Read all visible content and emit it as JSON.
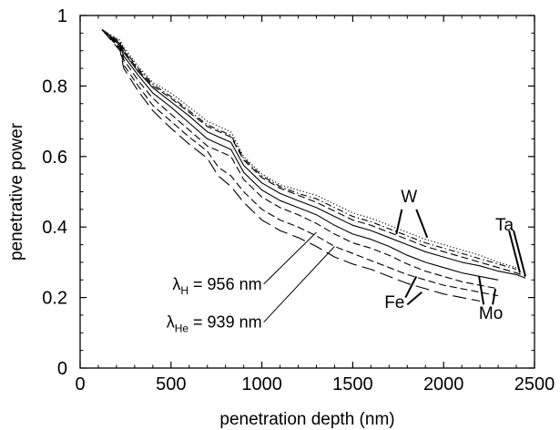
{
  "chart_data": {
    "type": "line",
    "title": "",
    "xlabel": "penetration depth (nm)",
    "ylabel": "penetrative power",
    "xlim": [
      0,
      2500
    ],
    "ylim": [
      0,
      1
    ],
    "xticks": [
      0,
      500,
      1000,
      1500,
      2000,
      2500
    ],
    "xtick_labels": [
      "0",
      "500",
      "1000",
      "1500",
      "2000",
      "2500"
    ],
    "yticks": [
      0,
      0.2,
      0.4,
      0.6,
      0.8,
      1
    ],
    "ytick_labels": [
      "0",
      "0.2",
      "0.4",
      "0.6",
      "0.8",
      "1"
    ],
    "grid": false,
    "legend": "none",
    "series": [
      {
        "element": "W",
        "wavelength": "H",
        "style": "dotted",
        "x": [
          120,
          220,
          240,
          320,
          400,
          500,
          600,
          700,
          830,
          900,
          1000,
          1100,
          1200,
          1300,
          1400,
          1500,
          1600,
          1700,
          1800,
          1900,
          2000,
          2100,
          2200,
          2300,
          2400
        ],
        "y": [
          0.96,
          0.93,
          0.91,
          0.855,
          0.81,
          0.78,
          0.74,
          0.7,
          0.67,
          0.6,
          0.55,
          0.52,
          0.505,
          0.49,
          0.465,
          0.44,
          0.425,
          0.405,
          0.385,
          0.365,
          0.35,
          0.335,
          0.32,
          0.3,
          0.285
        ]
      },
      {
        "element": "W",
        "wavelength": "He",
        "style": "dashdot",
        "x": [
          120,
          220,
          240,
          320,
          400,
          500,
          600,
          700,
          830,
          900,
          1000,
          1100,
          1200,
          1300,
          1400,
          1500,
          1600,
          1700,
          1800,
          1900,
          2000,
          2100,
          2200,
          2300,
          2400
        ],
        "y": [
          0.96,
          0.925,
          0.905,
          0.85,
          0.805,
          0.77,
          0.73,
          0.69,
          0.66,
          0.595,
          0.545,
          0.515,
          0.495,
          0.48,
          0.455,
          0.43,
          0.415,
          0.395,
          0.375,
          0.355,
          0.34,
          0.325,
          0.31,
          0.295,
          0.28
        ]
      },
      {
        "element": "Ta",
        "wavelength": "H",
        "style": "dashed",
        "x": [
          120,
          220,
          240,
          320,
          400,
          500,
          600,
          700,
          830,
          900,
          1000,
          1100,
          1200,
          1300,
          1400,
          1500,
          1600,
          1700,
          1800,
          1900,
          2000,
          2100,
          2200,
          2300,
          2400,
          2450
        ],
        "y": [
          0.96,
          0.92,
          0.9,
          0.845,
          0.8,
          0.765,
          0.725,
          0.685,
          0.655,
          0.59,
          0.54,
          0.51,
          0.49,
          0.47,
          0.445,
          0.42,
          0.405,
          0.385,
          0.365,
          0.345,
          0.33,
          0.315,
          0.3,
          0.285,
          0.27,
          0.26
        ]
      },
      {
        "element": "Ta",
        "wavelength": "He",
        "style": "solid",
        "x": [
          120,
          220,
          240,
          320,
          400,
          500,
          600,
          700,
          830,
          900,
          1000,
          1100,
          1200,
          1300,
          1400,
          1500,
          1600,
          1700,
          1800,
          1900,
          2000,
          2100,
          2200,
          2300,
          2400,
          2450
        ],
        "y": [
          0.96,
          0.92,
          0.895,
          0.84,
          0.795,
          0.755,
          0.715,
          0.67,
          0.64,
          0.575,
          0.525,
          0.495,
          0.475,
          0.455,
          0.43,
          0.405,
          0.39,
          0.37,
          0.35,
          0.33,
          0.315,
          0.3,
          0.29,
          0.275,
          0.265,
          0.255
        ]
      },
      {
        "element": "Mo",
        "wavelength": "H",
        "style": "solid",
        "x": [
          120,
          220,
          240,
          320,
          400,
          500,
          600,
          700,
          830,
          900,
          1000,
          1100,
          1200,
          1300,
          1400,
          1500,
          1600,
          1700,
          1800,
          1900,
          2000,
          2100,
          2200,
          2300
        ],
        "y": [
          0.96,
          0.915,
          0.885,
          0.83,
          0.78,
          0.74,
          0.695,
          0.65,
          0.62,
          0.555,
          0.505,
          0.475,
          0.455,
          0.435,
          0.405,
          0.38,
          0.365,
          0.345,
          0.32,
          0.3,
          0.285,
          0.27,
          0.26,
          0.25
        ]
      },
      {
        "element": "Mo",
        "wavelength": "He",
        "style": "dashed",
        "x": [
          120,
          220,
          240,
          320,
          400,
          500,
          600,
          700,
          830,
          900,
          1000,
          1100,
          1200,
          1300,
          1400,
          1500,
          1600,
          1700,
          1800,
          1900,
          2000,
          2100,
          2200,
          2300
        ],
        "y": [
          0.96,
          0.91,
          0.875,
          0.815,
          0.765,
          0.72,
          0.675,
          0.63,
          0.6,
          0.535,
          0.485,
          0.455,
          0.435,
          0.41,
          0.38,
          0.355,
          0.34,
          0.32,
          0.295,
          0.275,
          0.26,
          0.245,
          0.235,
          0.225
        ]
      },
      {
        "element": "Fe",
        "wavelength": "H",
        "style": "dashed",
        "x": [
          120,
          220,
          240,
          320,
          400,
          500,
          600,
          700,
          760,
          830,
          900,
          1000,
          1100,
          1200,
          1300,
          1400,
          1500,
          1600,
          1700,
          1800,
          1900,
          2000,
          2100,
          2200,
          2300
        ],
        "y": [
          0.96,
          0.905,
          0.86,
          0.8,
          0.745,
          0.7,
          0.655,
          0.615,
          0.57,
          0.545,
          0.5,
          0.45,
          0.42,
          0.4,
          0.375,
          0.345,
          0.325,
          0.305,
          0.285,
          0.265,
          0.25,
          0.235,
          0.225,
          0.215,
          0.205
        ]
      },
      {
        "element": "Fe",
        "wavelength": "He",
        "style": "longdash",
        "x": [
          120,
          220,
          240,
          320,
          400,
          500,
          600,
          700,
          760,
          830,
          900,
          1000,
          1100,
          1200,
          1300,
          1400,
          1500,
          1600,
          1700,
          1800,
          1900,
          2000,
          2100,
          2200
        ],
        "y": [
          0.96,
          0.9,
          0.85,
          0.785,
          0.73,
          0.68,
          0.635,
          0.595,
          0.545,
          0.515,
          0.47,
          0.42,
          0.39,
          0.37,
          0.345,
          0.315,
          0.295,
          0.28,
          0.26,
          0.24,
          0.225,
          0.21,
          0.2,
          0.19
        ]
      }
    ],
    "annotations": [
      {
        "text": "W",
        "x": 1810,
        "y": 0.47,
        "lines": [
          [
            1770,
            0.45,
            1740,
            0.38
          ],
          [
            1850,
            0.45,
            1910,
            0.37
          ]
        ]
      },
      {
        "text": "Ta",
        "x": 2335,
        "y": 0.39,
        "lines": [
          [
            2360,
            0.39,
            2420,
            0.27
          ],
          [
            2385,
            0.39,
            2450,
            0.26
          ]
        ]
      },
      {
        "text": "Fe",
        "x": 1730,
        "y": 0.17,
        "lines": [
          [
            1790,
            0.2,
            1850,
            0.26
          ],
          [
            1800,
            0.18,
            1880,
            0.215
          ]
        ]
      },
      {
        "text": "Mo",
        "x": 2260,
        "y": 0.14,
        "lines": [
          [
            2220,
            0.18,
            2195,
            0.26
          ],
          [
            2270,
            0.18,
            2285,
            0.225
          ]
        ]
      }
    ],
    "wavelength_labels": [
      {
        "text_main": "λ",
        "text_sub": "H",
        "text_rest": " = 956 nm",
        "x": 1000,
        "y": 0.238,
        "leader": [
          1010,
          0.238,
          1300,
          0.385
        ]
      },
      {
        "text_main": "λ",
        "text_sub": "He",
        "text_rest": " = 939 nm",
        "x": 1000,
        "y": 0.13,
        "leader": [
          1010,
          0.13,
          1400,
          0.345
        ]
      }
    ]
  }
}
